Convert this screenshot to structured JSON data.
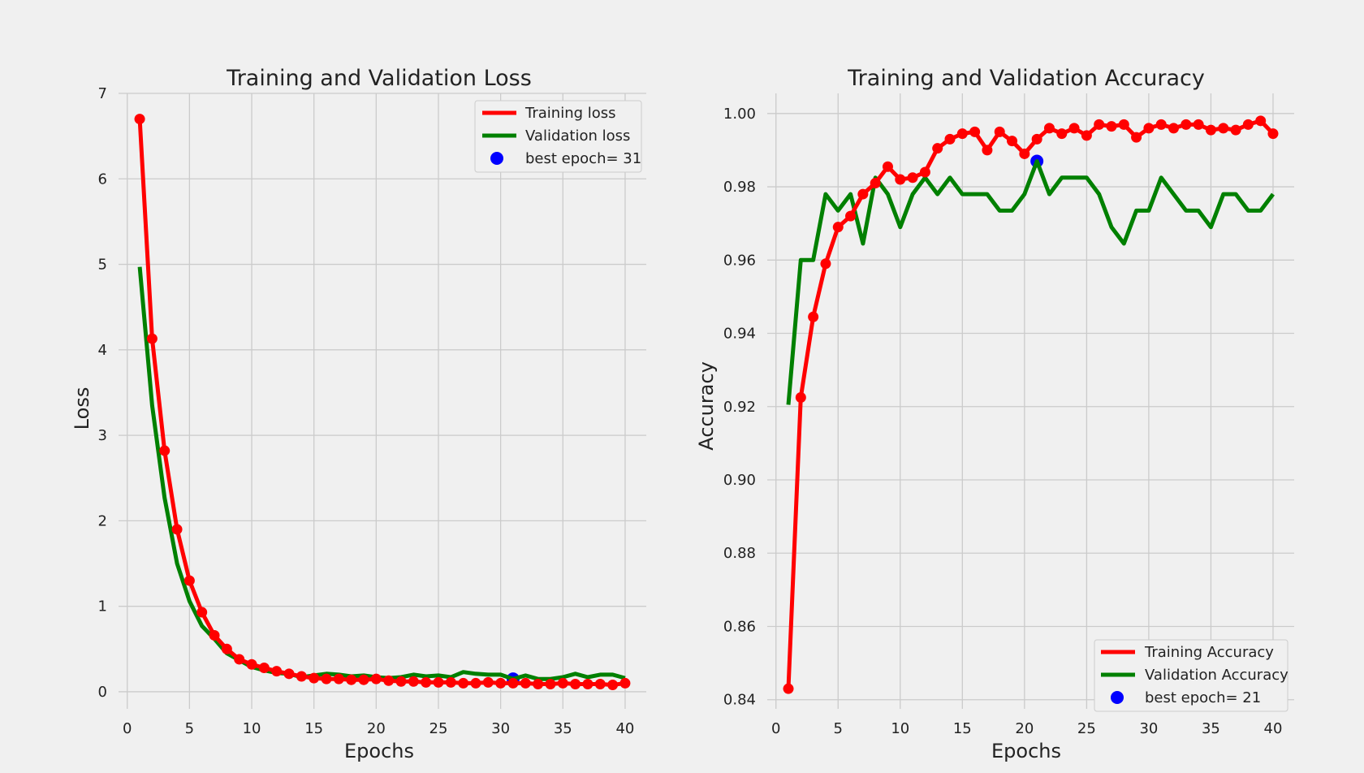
{
  "chart_data": [
    {
      "type": "line",
      "title": "Training and Validation Loss",
      "xlabel": "Epochs",
      "ylabel": "Loss",
      "xlim": [
        -0.7,
        41.7
      ],
      "ylim": [
        -0.2,
        7.0
      ],
      "xticks": [
        0,
        5,
        10,
        15,
        20,
        25,
        30,
        35,
        40
      ],
      "yticks": [
        0,
        1,
        2,
        3,
        4,
        5,
        6,
        7
      ],
      "tick_format": "int",
      "grid": true,
      "legend_position": "top-right",
      "x": [
        1,
        2,
        3,
        4,
        5,
        6,
        7,
        8,
        9,
        10,
        11,
        12,
        13,
        14,
        15,
        16,
        17,
        18,
        19,
        20,
        21,
        22,
        23,
        24,
        25,
        26,
        27,
        28,
        29,
        30,
        31,
        32,
        33,
        34,
        35,
        36,
        37,
        38,
        39,
        40
      ],
      "series": [
        {
          "name": "Training loss",
          "color": "#ff0000",
          "markers": true,
          "values": [
            6.7,
            4.13,
            2.82,
            1.9,
            1.3,
            0.93,
            0.66,
            0.5,
            0.38,
            0.32,
            0.28,
            0.24,
            0.21,
            0.18,
            0.16,
            0.15,
            0.15,
            0.14,
            0.14,
            0.15,
            0.13,
            0.12,
            0.12,
            0.11,
            0.11,
            0.11,
            0.1,
            0.1,
            0.11,
            0.1,
            0.1,
            0.1,
            0.09,
            0.09,
            0.1,
            0.09,
            0.09,
            0.09,
            0.08,
            0.1
          ]
        },
        {
          "name": "Validation loss",
          "color": "#008000",
          "markers": false,
          "values": [
            4.97,
            3.35,
            2.27,
            1.5,
            1.06,
            0.77,
            0.62,
            0.45,
            0.37,
            0.29,
            0.25,
            0.22,
            0.21,
            0.17,
            0.19,
            0.21,
            0.2,
            0.18,
            0.19,
            0.17,
            0.16,
            0.17,
            0.2,
            0.18,
            0.19,
            0.17,
            0.23,
            0.21,
            0.2,
            0.2,
            0.15,
            0.19,
            0.15,
            0.15,
            0.17,
            0.21,
            0.17,
            0.2,
            0.2,
            0.16
          ]
        }
      ],
      "best_point": {
        "label": "best epoch= 31",
        "x": 31,
        "y": 0.15,
        "color": "#0000ff"
      }
    },
    {
      "type": "line",
      "title": "Training and Validation Accuracy",
      "xlabel": "Epochs",
      "ylabel": "Accuracy",
      "xlim": [
        -0.7,
        41.7
      ],
      "ylim": [
        0.8375,
        1.0055
      ],
      "xticks": [
        0,
        5,
        10,
        15,
        20,
        25,
        30,
        35,
        40
      ],
      "yticks": [
        0.84,
        0.86,
        0.88,
        0.9,
        0.92,
        0.94,
        0.96,
        0.98,
        1.0
      ],
      "tick_format": "fixed2",
      "grid": true,
      "legend_position": "bottom-right",
      "x": [
        1,
        2,
        3,
        4,
        5,
        6,
        7,
        8,
        9,
        10,
        11,
        12,
        13,
        14,
        15,
        16,
        17,
        18,
        19,
        20,
        21,
        22,
        23,
        24,
        25,
        26,
        27,
        28,
        29,
        30,
        31,
        32,
        33,
        34,
        35,
        36,
        37,
        38,
        39,
        40
      ],
      "series": [
        {
          "name": "Training Accuracy",
          "color": "#ff0000",
          "markers": true,
          "values": [
            0.843,
            0.9225,
            0.9445,
            0.959,
            0.969,
            0.972,
            0.978,
            0.981,
            0.9855,
            0.982,
            0.9825,
            0.984,
            0.9905,
            0.993,
            0.9945,
            0.995,
            0.99,
            0.995,
            0.9925,
            0.989,
            0.993,
            0.996,
            0.9945,
            0.996,
            0.994,
            0.997,
            0.9965,
            0.997,
            0.9935,
            0.996,
            0.997,
            0.996,
            0.997,
            0.997,
            0.9955,
            0.996,
            0.9955,
            0.997,
            0.998,
            0.9945
          ]
        },
        {
          "name": "Validation Accuracy",
          "color": "#008000",
          "markers": false,
          "values": [
            0.9205,
            0.96,
            0.96,
            0.978,
            0.9735,
            0.978,
            0.9645,
            0.9825,
            0.978,
            0.969,
            0.978,
            0.9825,
            0.978,
            0.9825,
            0.978,
            0.978,
            0.978,
            0.9735,
            0.9735,
            0.978,
            0.987,
            0.978,
            0.9825,
            0.9825,
            0.9825,
            0.978,
            0.969,
            0.9645,
            0.9735,
            0.9735,
            0.9825,
            0.978,
            0.9735,
            0.9735,
            0.969,
            0.978,
            0.978,
            0.9735,
            0.9735,
            0.978
          ]
        }
      ],
      "best_point": {
        "label": "best epoch= 21",
        "x": 21,
        "y": 0.987,
        "color": "#0000ff"
      }
    }
  ]
}
